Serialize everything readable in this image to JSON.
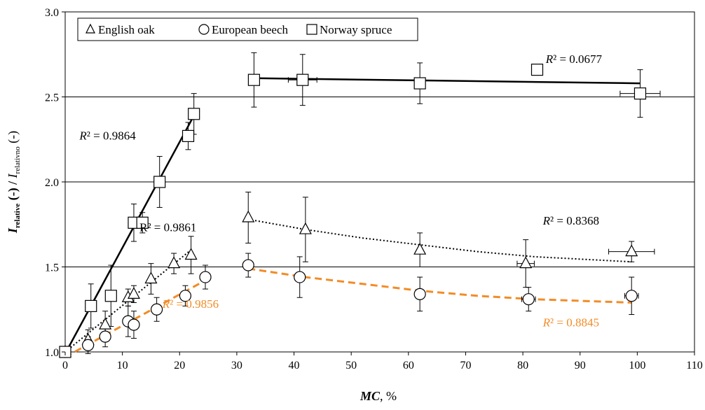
{
  "chart_data": {
    "type": "scatter",
    "xlabel": {
      "main": "MC",
      "suffix": ", %"
    },
    "ylabel": {
      "p1": "I",
      "p1_sub": "relative",
      "p2": " (-) / ",
      "p3": "I",
      "p3_sub": "relativno",
      "p4": " (-)"
    },
    "xlim": [
      0,
      110
    ],
    "ylim": [
      1.0,
      3.0
    ],
    "x_ticks": [
      "0",
      "10",
      "20",
      "30",
      "40",
      "50",
      "60",
      "70",
      "80",
      "90",
      "100",
      "110"
    ],
    "y_ticks": [
      "1.0",
      "1.5",
      "2.0",
      "2.5",
      "3.0"
    ],
    "grid": "horizontal",
    "legend_position": "top-left",
    "series": [
      {
        "name": "English oak",
        "marker": "triangle",
        "color": "#000000",
        "points": [
          {
            "x": 0,
            "y": 1.0,
            "yerr": 0.03
          },
          {
            "x": 4,
            "y": 1.07,
            "yerr": 0.06
          },
          {
            "x": 7,
            "y": 1.16,
            "yerr": 0.08
          },
          {
            "x": 11,
            "y": 1.32,
            "yerr": 0.05
          },
          {
            "x": 12,
            "y": 1.34,
            "yerr": 0.05
          },
          {
            "x": 15,
            "y": 1.43,
            "yerr": 0.09
          },
          {
            "x": 19,
            "y": 1.52,
            "yerr": 0.06
          },
          {
            "x": 22,
            "y": 1.57,
            "yerr": 0.11
          },
          {
            "x": 32,
            "y": 1.79,
            "yerr": 0.15
          },
          {
            "x": 42,
            "y": 1.72,
            "yerr": 0.19
          },
          {
            "x": 62,
            "y": 1.6,
            "yerr": 0.1
          },
          {
            "x": 80.5,
            "y": 1.52,
            "yerr": 0.14,
            "xerr": 1.5
          },
          {
            "x": 99,
            "y": 1.59,
            "yerr": 0.06,
            "xerr": 4
          }
        ]
      },
      {
        "name": "European beech",
        "marker": "circle",
        "color": "#000000",
        "points": [
          {
            "x": 0,
            "y": 1.0,
            "yerr": 0.03
          },
          {
            "x": 4,
            "y": 1.04,
            "yerr": 0.05
          },
          {
            "x": 7,
            "y": 1.09,
            "yerr": 0.06
          },
          {
            "x": 11,
            "y": 1.18,
            "yerr": 0.09
          },
          {
            "x": 12,
            "y": 1.16,
            "yerr": 0.08
          },
          {
            "x": 16,
            "y": 1.25,
            "yerr": 0.07
          },
          {
            "x": 21,
            "y": 1.33,
            "yerr": 0.06
          },
          {
            "x": 24.5,
            "y": 1.44,
            "yerr": 0.07
          },
          {
            "x": 32,
            "y": 1.51,
            "yerr": 0.07
          },
          {
            "x": 41,
            "y": 1.44,
            "yerr": 0.12
          },
          {
            "x": 62,
            "y": 1.34,
            "yerr": 0.1
          },
          {
            "x": 81,
            "y": 1.31,
            "yerr": 0.07,
            "xerr": 1.2
          },
          {
            "x": 99,
            "y": 1.33,
            "yerr": 0.11,
            "xerr": 1.2
          }
        ]
      },
      {
        "name": "Norway spruce",
        "marker": "square",
        "color": "#000000",
        "points": [
          {
            "x": 0,
            "y": 1.0,
            "yerr": 0.03
          },
          {
            "x": 4.5,
            "y": 1.27,
            "yerr": 0.13
          },
          {
            "x": 8,
            "y": 1.33,
            "yerr": 0.18
          },
          {
            "x": 12,
            "y": 1.76,
            "yerr": 0.11
          },
          {
            "x": 13.5,
            "y": 1.76,
            "yerr": 0.06
          },
          {
            "x": 16.5,
            "y": 2.0,
            "yerr": 0.15
          },
          {
            "x": 21.5,
            "y": 2.27,
            "yerr": 0.08
          },
          {
            "x": 22.5,
            "y": 2.4,
            "yerr": 0.12
          },
          {
            "x": 33,
            "y": 2.6,
            "yerr": 0.16
          },
          {
            "x": 41.5,
            "y": 2.6,
            "yerr": 0.15,
            "xerr": 2.5
          },
          {
            "x": 62,
            "y": 2.58,
            "yerr": 0.12
          },
          {
            "x": 82.5,
            "y": 2.66
          },
          {
            "x": 100.5,
            "y": 2.52,
            "yerr": 0.14,
            "xerr": 3.5
          }
        ]
      }
    ],
    "fits": [
      {
        "name": "spruce-low",
        "style": "solid",
        "color": "#000000",
        "points": [
          [
            0,
            0.99
          ],
          [
            22.5,
            2.39
          ]
        ]
      },
      {
        "name": "spruce-high",
        "style": "solid",
        "color": "#000000",
        "points": [
          [
            33,
            2.61
          ],
          [
            100.5,
            2.58
          ]
        ]
      },
      {
        "name": "oak-low",
        "style": "dotted",
        "color": "#000000",
        "points": [
          [
            0,
            1.0
          ],
          [
            22,
            1.6
          ]
        ]
      },
      {
        "name": "oak-high",
        "style": "dotted",
        "color": "#000000",
        "points": [
          [
            32,
            1.78
          ],
          [
            42,
            1.72
          ],
          [
            52,
            1.67
          ],
          [
            62,
            1.63
          ],
          [
            72,
            1.59
          ],
          [
            82,
            1.56
          ],
          [
            99,
            1.53
          ]
        ]
      },
      {
        "name": "beech-low",
        "style": "dashed",
        "color": "#F28C28",
        "points": [
          [
            0,
            0.97
          ],
          [
            25,
            1.43
          ]
        ]
      },
      {
        "name": "beech-high",
        "style": "dashed",
        "color": "#F28C28",
        "points": [
          [
            32,
            1.49
          ],
          [
            42,
            1.44
          ],
          [
            52,
            1.4
          ],
          [
            62,
            1.36
          ],
          [
            72,
            1.33
          ],
          [
            82,
            1.31
          ],
          [
            99,
            1.29
          ]
        ]
      }
    ],
    "annotations": [
      {
        "text": "R² = 0.9864",
        "italic_r": true,
        "color": "#000000",
        "x": 2.5,
        "y": 2.25
      },
      {
        "text": "R² = 0.0677",
        "italic_r": true,
        "color": "#000000",
        "x": 84,
        "y": 2.7
      },
      {
        "text": "R² = 0.9861",
        "italic_r": false,
        "color": "#000000",
        "x": 13,
        "y": 1.71
      },
      {
        "text": "R² = 0.8368",
        "italic_r": true,
        "color": "#000000",
        "x": 83.5,
        "y": 1.75
      },
      {
        "text": "R² = 0.9856",
        "italic_r": true,
        "color": "#F28C28",
        "x": 17,
        "y": 1.26
      },
      {
        "text": "R² = 0.8845",
        "italic_r": true,
        "color": "#F28C28",
        "x": 83.5,
        "y": 1.15
      }
    ]
  }
}
